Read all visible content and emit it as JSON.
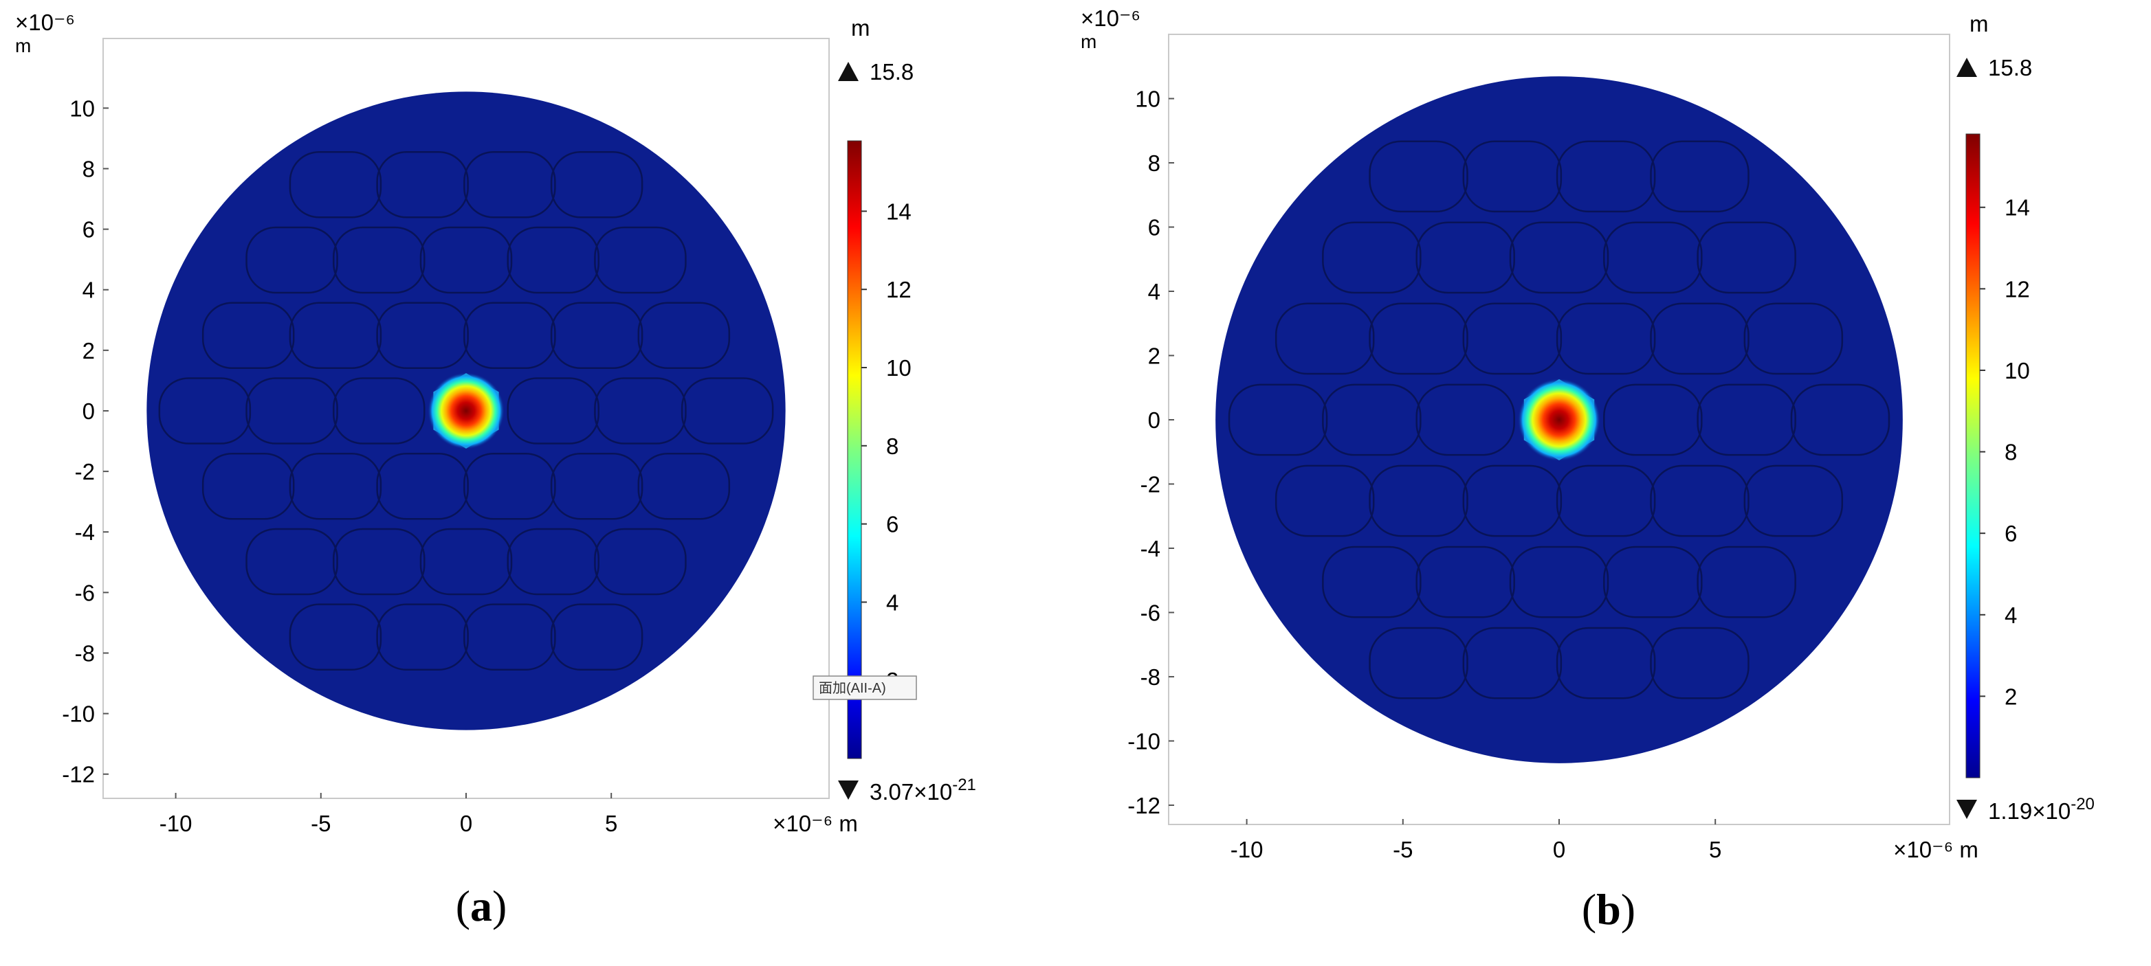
{
  "chart_data": [
    {
      "type": "heatmap",
      "panel_label": "(a)",
      "x_unit_label": "×10⁻⁶ m",
      "y_unit_label": "×10⁻⁶",
      "y_unit_sub": "m",
      "x_ticks": [
        -10,
        -5,
        0,
        5
      ],
      "y_ticks": [
        10,
        8,
        6,
        4,
        2,
        0,
        -2,
        -4,
        -6,
        -8,
        -10,
        -12
      ],
      "xlim": [
        -12.5,
        12.5
      ],
      "ylim": [
        -12.8,
        12.3
      ],
      "fiber_radius": 11,
      "mode_center": [
        0,
        0
      ],
      "mode_peak": 15.8,
      "colorbar": {
        "unit": "m",
        "max_label": "15.8",
        "min_label": "3.07×10⁻²¹",
        "min_mantissa": "3.07×10",
        "min_exponent": "-21",
        "ticks": [
          14,
          12,
          10,
          8,
          6,
          4,
          2
        ],
        "range": [
          0,
          15.8
        ],
        "colormap": "rainbow (blue → cyan → green → yellow → red → dark red)"
      },
      "tooltip": "面加(AII-A)",
      "background_color": "#0c1e8e",
      "structure": "hexagonal air-hole cladding outlined in dark lines"
    },
    {
      "type": "heatmap",
      "panel_label": "(b)",
      "x_unit_label": "×10⁻⁶ m",
      "y_unit_label": "×10⁻⁶",
      "y_unit_sub": "m",
      "x_ticks": [
        -10,
        -5,
        0,
        5
      ],
      "y_ticks": [
        10,
        8,
        6,
        4,
        2,
        0,
        -2,
        -4,
        -6,
        -8,
        -10,
        -12
      ],
      "xlim": [
        -12.5,
        12.5
      ],
      "ylim": [
        -12.6,
        12.0
      ],
      "fiber_radius": 11,
      "mode_center": [
        0,
        0
      ],
      "mode_peak": 15.8,
      "colorbar": {
        "unit": "m",
        "max_label": "15.8",
        "min_label": "1.19×10⁻²⁰",
        "min_mantissa": "1.19×10",
        "min_exponent": "-20",
        "ticks": [
          14,
          12,
          10,
          8,
          6,
          4,
          2
        ],
        "range": [
          0,
          15.8
        ],
        "colormap": "rainbow (blue → cyan → green → yellow → red → dark red)"
      },
      "background_color": "#0c1e8e",
      "structure": "hexagonal air-hole cladding outlined in dark lines"
    }
  ],
  "icons": {
    "max_marker": "triangle-up-icon",
    "min_marker": "triangle-down-icon"
  }
}
